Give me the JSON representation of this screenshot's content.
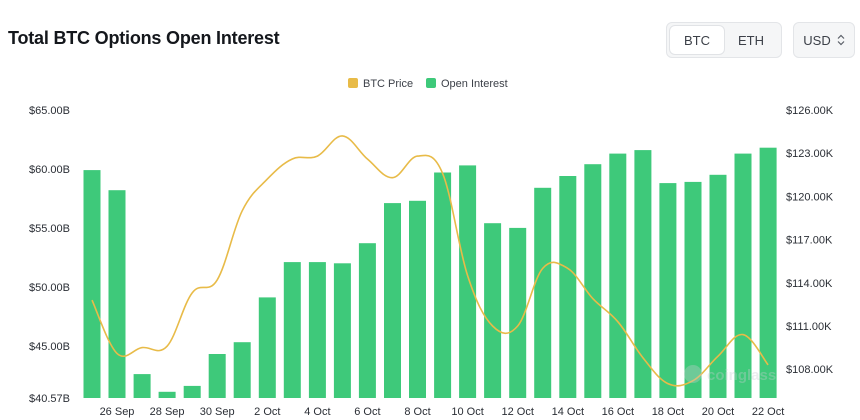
{
  "header": {
    "title": "Total BTC Options Open Interest",
    "toggle": [
      "BTC",
      "ETH"
    ],
    "active_toggle": "BTC",
    "currency": "USD"
  },
  "watermark": "coinglass",
  "colors": {
    "bars": "#3ec97a",
    "line": "#e8bb48"
  },
  "chart_data": {
    "type": "bar",
    "legend": [
      "BTC Price",
      "Open Interest"
    ],
    "legend_position": "top-center",
    "grid": false,
    "x_tick_labels": [
      "26 Sep",
      "28 Sep",
      "30 Sep",
      "2 Oct",
      "4 Oct",
      "6 Oct",
      "8 Oct",
      "10 Oct",
      "12 Oct",
      "14 Oct",
      "16 Oct",
      "18 Oct",
      "20 Oct",
      "22 Oct"
    ],
    "y_left": {
      "ticks": [
        "$65.00B",
        "$60.00B",
        "$55.00B",
        "$50.00B",
        "$45.00B",
        "$40.57B"
      ],
      "range": [
        40.57,
        65.0
      ]
    },
    "y_right": {
      "ticks": [
        "$126.00K",
        "$123.00K",
        "$120.00K",
        "$117.00K",
        "$114.00K",
        "$111.00K",
        "$108.00K"
      ],
      "range": [
        106.0,
        126.0
      ]
    },
    "series": [
      {
        "name": "Open Interest",
        "type": "bar",
        "axis": "left",
        "values": [
          59.9,
          58.2,
          42.6,
          41.1,
          41.6,
          44.3,
          45.3,
          49.1,
          52.1,
          52.1,
          52.0,
          53.7,
          57.1,
          57.3,
          59.7,
          60.3,
          55.4,
          55.0,
          58.4,
          59.4,
          60.4,
          61.3,
          61.6,
          58.8,
          58.9,
          59.5,
          61.3,
          61.8
        ]
      },
      {
        "name": "BTC Price",
        "type": "line",
        "axis": "right",
        "values": [
          112.8,
          109.1,
          109.5,
          109.6,
          113.3,
          114.2,
          119.0,
          121.2,
          122.6,
          122.8,
          124.2,
          122.6,
          121.3,
          122.8,
          121.6,
          114.5,
          111.0,
          111.0,
          115.0,
          115.0,
          112.9,
          111.3,
          108.8,
          107.0,
          107.2,
          108.9,
          110.4,
          108.3
        ]
      }
    ]
  }
}
